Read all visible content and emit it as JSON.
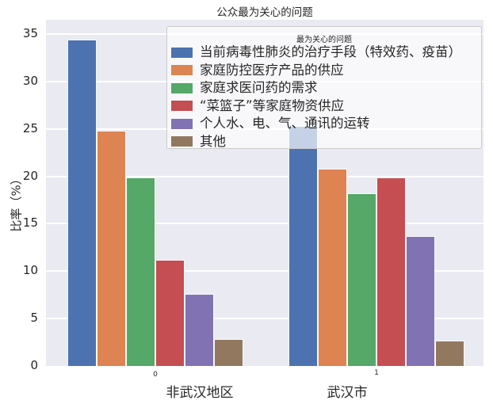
{
  "chart_data": {
    "type": "bar",
    "title": "公众最为关心的问题",
    "ylabel": "比率（%）",
    "xlabel": "",
    "categories": [
      "非武汉地区",
      "武汉市"
    ],
    "category_codes": [
      "0",
      "1"
    ],
    "legend_title": "最为关心的问题",
    "legend_position": "upper right",
    "grid": true,
    "plot_background": "#eaeaf2",
    "gridline_color": "#ffffff",
    "yticks": [
      0,
      5,
      10,
      15,
      20,
      25,
      30,
      35
    ],
    "ylim": [
      0,
      36.5
    ],
    "series": [
      {
        "name": "当前病毒性肺炎的治疗手段（特效药、疫苗）",
        "color": "#4C72B0",
        "values": [
          34.4,
          25.3
        ]
      },
      {
        "name": "家庭防控医疗产品的供应",
        "color": "#DD8452",
        "values": [
          24.8,
          20.8
        ]
      },
      {
        "name": "家庭求医问药的需求",
        "color": "#55A868",
        "values": [
          19.9,
          18.2
        ]
      },
      {
        "name": "“菜篮子”等家庭物资供应",
        "color": "#C44E52",
        "values": [
          11.2,
          19.9
        ]
      },
      {
        "name": "个人水、电、气、通讯的运转",
        "color": "#8172B3",
        "values": [
          7.6,
          13.7
        ]
      },
      {
        "name": "其他",
        "color": "#937860",
        "values": [
          2.8,
          2.7
        ]
      }
    ]
  }
}
